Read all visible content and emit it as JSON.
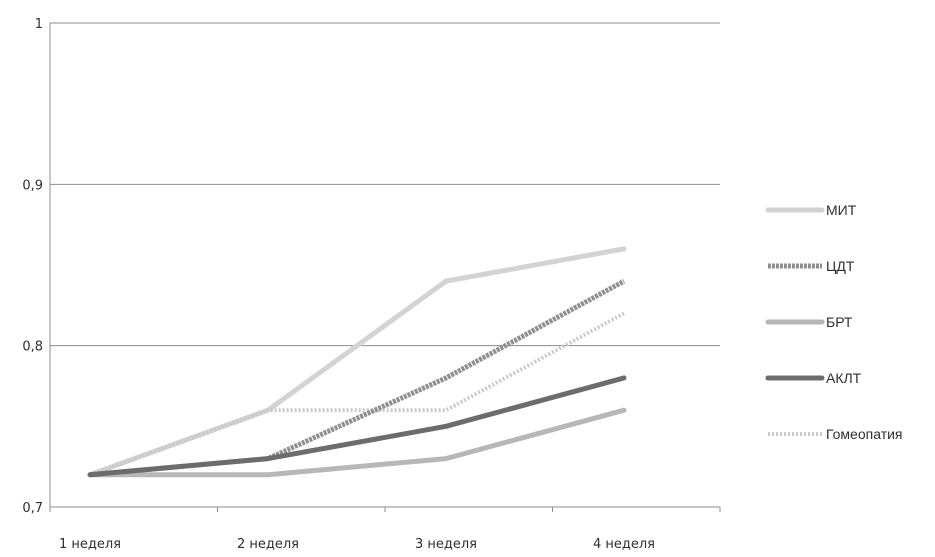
{
  "chart_data": {
    "type": "line",
    "categories": [
      "1 неделя",
      "2 неделя",
      "3 неделя",
      "4 неделя"
    ],
    "ylim": [
      0.7,
      1.0
    ],
    "yticks": [
      {
        "value": 0.7,
        "label": "0,7"
      },
      {
        "value": 0.8,
        "label": "0,8"
      },
      {
        "value": 0.9,
        "label": "0,9"
      },
      {
        "value": 1.0,
        "label": "1"
      }
    ],
    "grid": true,
    "legend_position": "right",
    "series": [
      {
        "name": "МИТ",
        "values": [
          0.72,
          0.76,
          0.84,
          0.86
        ],
        "color": "#d3d3d3",
        "style": "solid"
      },
      {
        "name": "ЦДТ",
        "values": [
          0.72,
          0.73,
          0.78,
          0.84
        ],
        "color": "#8f8f8f",
        "style": "textured"
      },
      {
        "name": "БРТ",
        "values": [
          0.72,
          0.72,
          0.73,
          0.76
        ],
        "color": "#b7b7b7",
        "style": "solid"
      },
      {
        "name": "АКЛТ",
        "values": [
          0.72,
          0.73,
          0.75,
          0.78
        ],
        "color": "#6c6c6c",
        "style": "solid"
      },
      {
        "name": "Гомеопатия",
        "values": [
          0.72,
          0.76,
          0.76,
          0.82
        ],
        "color": "#c9c9c9",
        "style": "dotted"
      }
    ]
  }
}
